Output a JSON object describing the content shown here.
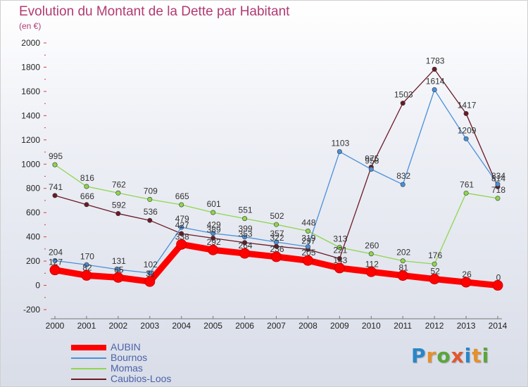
{
  "title": "Evolution du Montant de la Dette par Habitant",
  "subtitle": "(en €)",
  "logo": {
    "text": "Proxiti",
    "letter_colors": [
      "#2a86c8",
      "#e6902a",
      "#5aa63a",
      "#e0582e",
      "#2a86c8",
      "#e6902a",
      "#5aa63a"
    ]
  },
  "chart_data": {
    "type": "line",
    "x": [
      2000,
      2001,
      2002,
      2003,
      2004,
      2005,
      2006,
      2007,
      2008,
      2009,
      2010,
      2011,
      2012,
      2013,
      2014
    ],
    "ylim": [
      -200,
      2000
    ],
    "yticks": [
      -200,
      0,
      200,
      400,
      600,
      800,
      1000,
      1200,
      1400,
      1600,
      1800,
      2000
    ],
    "grid": false,
    "legend_position": "bottom-left",
    "series": [
      {
        "name": "AUBIN",
        "color": "#ff0000",
        "values": [
          127,
          82,
          65,
          31,
          338,
          292,
          264,
          236,
          205,
          143,
          112,
          81,
          52,
          26,
          0
        ],
        "labels": [
          "127",
          "82",
          "65",
          "31",
          "338",
          "292",
          "264",
          "236",
          "205",
          "143",
          "112",
          "81",
          "52",
          "26",
          "0"
        ]
      },
      {
        "name": "Bournos",
        "color": "#4a90d9",
        "values": [
          204,
          170,
          131,
          102,
          479,
          429,
          399,
          357,
          319,
          1103,
          958,
          832,
          1614,
          1209,
          834
        ],
        "labels": [
          "204",
          "170",
          "131",
          "102",
          "479",
          "429",
          "399",
          "357",
          "319",
          "1103",
          "958",
          "832",
          "1614",
          "1209",
          "834"
        ]
      },
      {
        "name": "Momas",
        "color": "#8ed64e",
        "values": [
          995,
          816,
          762,
          709,
          665,
          601,
          551,
          502,
          448,
          313,
          260,
          202,
          176,
          761,
          718
        ],
        "labels": [
          "995",
          "816",
          "762",
          "709",
          "665",
          "601",
          "551",
          "502",
          "448",
          "313",
          "260",
          "202",
          "176",
          "761",
          "718"
        ]
      },
      {
        "name": "Caubios-Loos",
        "color": "#6b1a24",
        "values": [
          741,
          666,
          592,
          536,
          427,
          389,
          353,
          322,
          297,
          221,
          975,
          1503,
          1783,
          1417,
          814
        ],
        "labels": [
          "741",
          "666",
          "592",
          "536",
          "427",
          "389",
          "353",
          "322",
          "297",
          "221",
          "975",
          "1503",
          "1783",
          "1417",
          "814"
        ]
      }
    ]
  }
}
